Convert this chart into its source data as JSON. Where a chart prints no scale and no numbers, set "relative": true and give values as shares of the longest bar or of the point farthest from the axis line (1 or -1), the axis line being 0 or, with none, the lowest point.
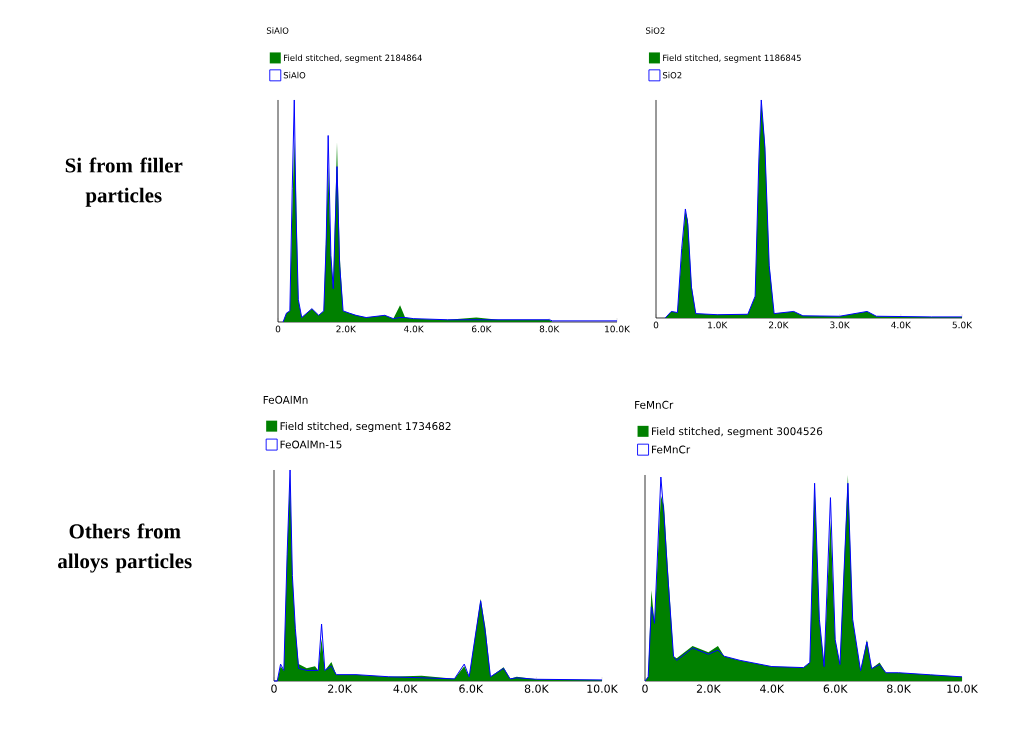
{
  "chart_data": [
    {
      "type": "area",
      "title": "SiAlO",
      "relative": true,
      "legend": "top left",
      "annotations": [
        "Si from filler particles"
      ],
      "xlim": [
        0,
        10000
      ],
      "xticks": [
        0,
        {
          "value": 2000,
          "label": "2.0K"
        },
        {
          "value": 4000,
          "label": "4.0K"
        },
        {
          "value": 6000,
          "label": "6.0K"
        },
        {
          "value": 8000,
          "label": "8.0K"
        },
        {
          "value": 10000,
          "label": "10.0K"
        }
      ],
      "x": [
        0,
        150,
        250,
        350,
        420,
        480,
        530,
        600,
        700,
        1000,
        1200,
        1350,
        1420,
        1480,
        1560,
        1630,
        1740,
        1820,
        1920,
        2100,
        2300,
        2600,
        3150,
        3400,
        3600,
        3750,
        4000,
        5000,
        5850,
        6500,
        8000,
        8100,
        10000
      ],
      "series": [
        {
          "name": "Field stitched, segment 2184864",
          "color": "#008000",
          "values": [
            0,
            0,
            0.04,
            0.05,
            0.5,
            0.82,
            0.6,
            0.1,
            0.02,
            0.06,
            0.03,
            0.05,
            0.4,
            0.7,
            0.3,
            0.15,
            0.81,
            0.3,
            0.05,
            0.04,
            0.03,
            0.02,
            0.03,
            0.015,
            0.075,
            0.02,
            0.015,
            0.01,
            0.02,
            0.01,
            0.01,
            0,
            0
          ]
        },
        {
          "name": "SiAlO",
          "type": "line",
          "color": "#0000ff",
          "values": [
            null,
            0,
            0.04,
            0.05,
            0.6,
            1,
            0.5,
            0.1,
            0.02,
            0.06,
            0.03,
            0.05,
            0.35,
            0.84,
            0.3,
            0.15,
            0.7,
            0.25,
            0.05,
            0.04,
            0.03,
            0.02,
            0.03,
            0.015,
            0.02,
            0.02,
            0.015,
            0.01,
            null,
            0.01,
            0.01,
            0.005,
            0.005
          ]
        }
      ]
    },
    {
      "type": "area",
      "title": "SiO2",
      "relative": true,
      "legend": "top left",
      "xlim": [
        0,
        5000
      ],
      "xticks": [
        0,
        {
          "value": 1000,
          "label": "1.0K"
        },
        {
          "value": 2000,
          "label": "2.0K"
        },
        {
          "value": 3000,
          "label": "3.0K"
        },
        {
          "value": 4000,
          "label": "4.0K"
        },
        {
          "value": 5000,
          "label": "5.0K"
        }
      ],
      "x": [
        0,
        150,
        250,
        350,
        420,
        480,
        520,
        580,
        650,
        1000,
        1500,
        1620,
        1680,
        1720,
        1780,
        1850,
        1930,
        2250,
        2400,
        3000,
        3450,
        3600,
        4500,
        5000
      ],
      "series": [
        {
          "name": "Field stitched, segment 1186845",
          "color": "#008000",
          "values": [
            0,
            0,
            0.03,
            0.025,
            0.3,
            0.49,
            0.45,
            0.15,
            0.02,
            0.015,
            0.017,
            0.1,
            0.7,
            0.99,
            0.8,
            0.25,
            0.02,
            0.03,
            0.01,
            0.008,
            0.03,
            0.008,
            0.005,
            0.005
          ]
        },
        {
          "name": "SiO2",
          "type": "line",
          "color": "#0000ff",
          "values": [
            null,
            0,
            0.03,
            0.025,
            0.32,
            0.5,
            0.43,
            0.14,
            0.02,
            0.015,
            0.017,
            0.1,
            0.72,
            1,
            0.78,
            0.24,
            0.02,
            0.03,
            0.01,
            0.008,
            0.03,
            0.008,
            0.005,
            0.005
          ]
        }
      ]
    },
    {
      "type": "area",
      "title": "FeOAlMn",
      "relative": true,
      "legend": "top left",
      "annotations": [
        "Others from alloys particles"
      ],
      "xlim": [
        0,
        10000
      ],
      "xticks": [
        0,
        {
          "value": 2000,
          "label": "2.0K"
        },
        {
          "value": 4000,
          "label": "4.0K"
        },
        {
          "value": 6000,
          "label": "6.0K"
        },
        {
          "value": 8000,
          "label": "8.0K"
        },
        {
          "value": 10000,
          "label": "10.0K"
        }
      ],
      "x": [
        0,
        100,
        200,
        300,
        400,
        490,
        560,
        650,
        750,
        1000,
        1250,
        1350,
        1450,
        1550,
        1750,
        1900,
        2500,
        3500,
        4500,
        5500,
        5800,
        5950,
        6300,
        6450,
        6600,
        7000,
        7200,
        7400,
        8000,
        10000
      ],
      "series": [
        {
          "name": "Field stitched, segment 1734682",
          "color": "#008000",
          "values": [
            0,
            0,
            0.07,
            0.05,
            0.6,
            0.98,
            0.5,
            0.25,
            0.08,
            0.06,
            0.07,
            0.05,
            0.2,
            0.05,
            0.09,
            0.03,
            0.03,
            0.02,
            0.025,
            0.01,
            0.07,
            0.02,
            0.39,
            0.25,
            0.02,
            0.065,
            0.01,
            0.02,
            0.008,
            0.005
          ]
        },
        {
          "name": "FeOAlMn-15",
          "type": "line",
          "color": "#0000ff",
          "values": [
            0,
            0,
            0.08,
            0.05,
            0.6,
            1,
            0.5,
            0.25,
            0.06,
            0.05,
            0.05,
            0.05,
            0.27,
            0.05,
            0.07,
            0.03,
            0.03,
            0.02,
            0.015,
            0.01,
            0.08,
            0.02,
            0.38,
            0.22,
            0.02,
            0.06,
            0.01,
            0.015,
            0.008,
            0.005
          ]
        }
      ]
    },
    {
      "type": "area",
      "title": "FeMnCr",
      "relative": true,
      "legend": "top left",
      "xlim": [
        0,
        10000
      ],
      "xticks": [
        0,
        {
          "value": 2000,
          "label": "2.0K"
        },
        {
          "value": 4000,
          "label": "4.0K"
        },
        {
          "value": 6000,
          "label": "6.0K"
        },
        {
          "value": 8000,
          "label": "8.0K"
        },
        {
          "value": 10000,
          "label": "10.0K"
        }
      ],
      "x": [
        0,
        100,
        200,
        300,
        500,
        600,
        700,
        900,
        1000,
        1500,
        2000,
        2300,
        2500,
        3000,
        4000,
        5000,
        5200,
        5350,
        5500,
        5650,
        5850,
        6000,
        6150,
        6400,
        6550,
        6800,
        7000,
        7150,
        7400,
        7600,
        8000,
        9000,
        10000
      ],
      "series": [
        {
          "name": "Field stitched, segment 3004526",
          "color": "#008000",
          "values": [
            0,
            0.02,
            0.44,
            0.28,
            0.9,
            0.85,
            0.6,
            0.12,
            0.11,
            0.17,
            0.14,
            0.17,
            0.12,
            0.1,
            0.07,
            0.065,
            0.09,
            0.95,
            0.3,
            0.07,
            0.78,
            0.2,
            0.08,
            1,
            0.3,
            0.05,
            0.2,
            0.06,
            0.09,
            0.04,
            0.04,
            0.03,
            0.02
          ]
        },
        {
          "name": "FeMnCr",
          "type": "line",
          "color": "#0000ff",
          "values": [
            0,
            0.02,
            0.36,
            0.28,
            0.99,
            0.8,
            0.55,
            0.12,
            0.1,
            0.16,
            0.13,
            0.15,
            0.12,
            0.1,
            0.07,
            0.065,
            0.09,
            0.96,
            0.3,
            0.07,
            0.89,
            0.2,
            0.08,
            0.96,
            0.3,
            0.05,
            0.19,
            0.06,
            0.08,
            0.04,
            0.04,
            0.03,
            0.02
          ]
        }
      ]
    }
  ]
}
